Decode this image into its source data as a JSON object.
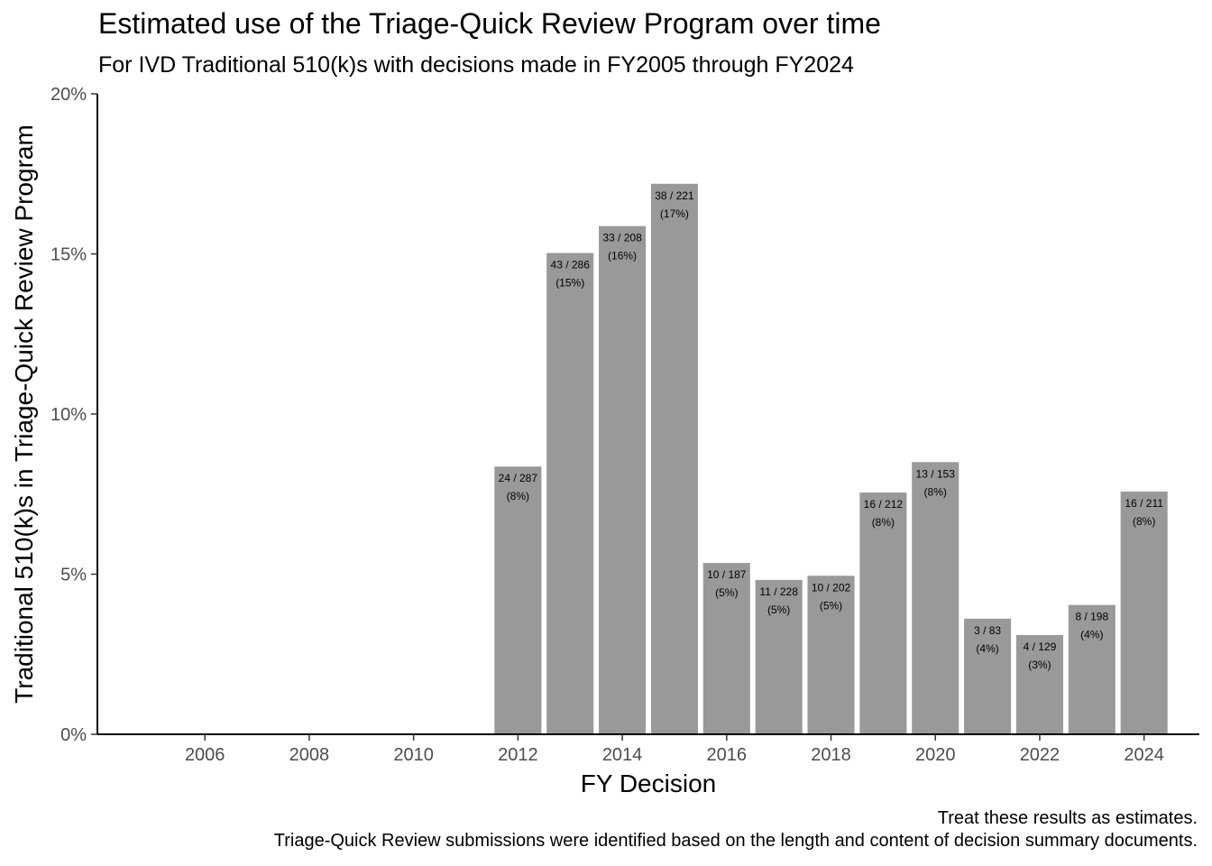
{
  "chart_data": {
    "type": "bar",
    "title": "Estimated use of the Triage-Quick Review Program over time",
    "subtitle": "For IVD Traditional 510(k)s with decisions made in FY2005 through FY2024",
    "xlabel": "FY Decision",
    "ylabel": "Traditional 510(k)s in Triage-Quick Review Program",
    "caption_lines": [
      "Treat these results as estimates.",
      "Triage-Quick Review submissions were identified based on the length and content of decision summary documents."
    ],
    "x_range": [
      2005,
      2024
    ],
    "x_ticks": [
      2006,
      2008,
      2010,
      2012,
      2014,
      2016,
      2018,
      2020,
      2022,
      2024
    ],
    "ylim": [
      0,
      0.2
    ],
    "y_ticks": [
      0,
      0.05,
      0.1,
      0.15,
      0.2
    ],
    "y_tick_labels": [
      "0%",
      "5%",
      "10%",
      "15%",
      "20%"
    ],
    "bar_color": "#999999",
    "grid": false,
    "bars": [
      {
        "x": 2012,
        "value": 0.0836,
        "label1": "24 / 287",
        "label2": "(8%)"
      },
      {
        "x": 2013,
        "value": 0.1503,
        "label1": "43 / 286",
        "label2": "(15%)"
      },
      {
        "x": 2014,
        "value": 0.1587,
        "label1": "33 / 208",
        "label2": "(16%)"
      },
      {
        "x": 2015,
        "value": 0.1719,
        "label1": "38 / 221",
        "label2": "(17%)"
      },
      {
        "x": 2016,
        "value": 0.0535,
        "label1": "10 / 187",
        "label2": "(5%)"
      },
      {
        "x": 2017,
        "value": 0.0482,
        "label1": "11 / 228",
        "label2": "(5%)"
      },
      {
        "x": 2018,
        "value": 0.0495,
        "label1": "10 / 202",
        "label2": "(5%)"
      },
      {
        "x": 2019,
        "value": 0.0755,
        "label1": "16 / 212",
        "label2": "(8%)"
      },
      {
        "x": 2020,
        "value": 0.085,
        "label1": "13 / 153",
        "label2": "(8%)"
      },
      {
        "x": 2021,
        "value": 0.0361,
        "label1": "3 / 83",
        "label2": "(4%)"
      },
      {
        "x": 2022,
        "value": 0.031,
        "label1": "4 / 129",
        "label2": "(3%)"
      },
      {
        "x": 2023,
        "value": 0.0404,
        "label1": "8 / 198",
        "label2": "(4%)"
      },
      {
        "x": 2024,
        "value": 0.0758,
        "label1": "16 / 211",
        "label2": "(8%)"
      }
    ]
  }
}
